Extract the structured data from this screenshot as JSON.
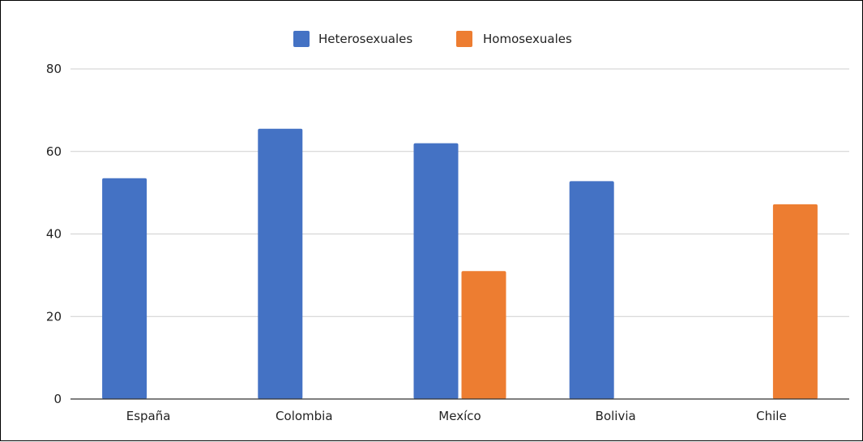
{
  "chart_data": {
    "type": "bar",
    "title": "",
    "xlabel": "",
    "ylabel": "",
    "categories": [
      "España",
      "Colombia",
      "Mexíco",
      "Bolivia",
      "Chile"
    ],
    "series": [
      {
        "name": "Heterosexuales",
        "color": "#4472c4",
        "values": [
          53.5,
          65.5,
          62,
          52.8,
          null
        ]
      },
      {
        "name": "Homosexuales",
        "color": "#ed7d31",
        "values": [
          null,
          null,
          31,
          null,
          47.2
        ]
      }
    ],
    "ylim": [
      0,
      80
    ],
    "yticks": [
      "0",
      "20",
      "40",
      "60",
      "80"
    ],
    "grid": true,
    "legend_position": "top-center"
  }
}
